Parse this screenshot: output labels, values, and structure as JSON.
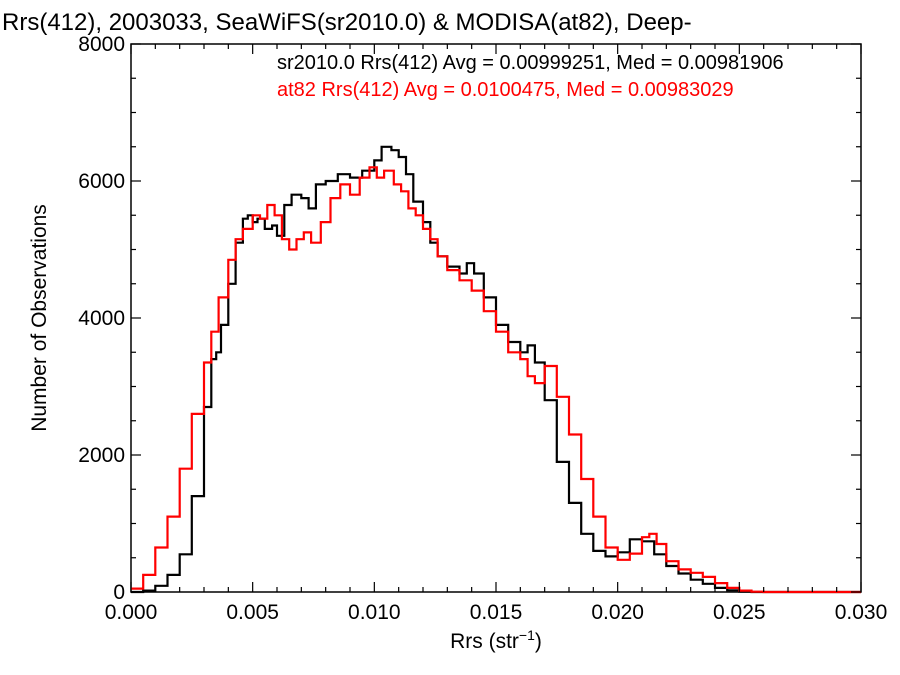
{
  "chart_data": {
    "type": "line",
    "step": true,
    "title": "Rrs(412), 2003033, SeaWiFS(sr2010.0) & MODISA(at82), Deep-",
    "xlabel": "Rrs (str",
    "xlabel_sup": "−1",
    "xlabel_end": ")",
    "ylabel": "Number of Observations",
    "xlim": [
      0.0,
      0.03
    ],
    "ylim": [
      0,
      8000
    ],
    "xticks": [
      "0.000",
      "0.005",
      "0.010",
      "0.015",
      "0.020",
      "0.025",
      "0.030"
    ],
    "yticks": [
      "0",
      "2000",
      "4000",
      "6000",
      "8000"
    ],
    "grid": false,
    "legend_position": "top-right",
    "series": [
      {
        "name": "sr2010.0 Rrs(412) Avg = 0.00999251, Med = 0.00981906",
        "color": "#000000",
        "points": [
          [
            0.0,
            0
          ],
          [
            0.0005,
            20
          ],
          [
            0.001,
            90
          ],
          [
            0.0015,
            250
          ],
          [
            0.002,
            550
          ],
          [
            0.0025,
            1400
          ],
          [
            0.003,
            2700
          ],
          [
            0.0033,
            3400
          ],
          [
            0.0035,
            3500
          ],
          [
            0.0037,
            3900
          ],
          [
            0.004,
            4500
          ],
          [
            0.0043,
            5100
          ],
          [
            0.0046,
            5450
          ],
          [
            0.0048,
            5500
          ],
          [
            0.005,
            5400
          ],
          [
            0.0052,
            5450
          ],
          [
            0.0055,
            5300
          ],
          [
            0.0058,
            5350
          ],
          [
            0.006,
            5200
          ],
          [
            0.0063,
            5650
          ],
          [
            0.0066,
            5800
          ],
          [
            0.007,
            5750
          ],
          [
            0.0073,
            5600
          ],
          [
            0.0076,
            5950
          ],
          [
            0.008,
            6000
          ],
          [
            0.0085,
            6100
          ],
          [
            0.009,
            6050
          ],
          [
            0.0095,
            6150
          ],
          [
            0.01,
            6300
          ],
          [
            0.0103,
            6500
          ],
          [
            0.0107,
            6450
          ],
          [
            0.011,
            6350
          ],
          [
            0.0113,
            6100
          ],
          [
            0.0116,
            5700
          ],
          [
            0.012,
            5400
          ],
          [
            0.0123,
            5100
          ],
          [
            0.0126,
            4900
          ],
          [
            0.013,
            4750
          ],
          [
            0.0135,
            4650
          ],
          [
            0.0138,
            4800
          ],
          [
            0.0141,
            4650
          ],
          [
            0.0145,
            4300
          ],
          [
            0.015,
            3900
          ],
          [
            0.0155,
            3650
          ],
          [
            0.016,
            3500
          ],
          [
            0.0163,
            3600
          ],
          [
            0.0166,
            3350
          ],
          [
            0.017,
            2800
          ],
          [
            0.0175,
            1900
          ],
          [
            0.018,
            1300
          ],
          [
            0.0185,
            850
          ],
          [
            0.019,
            600
          ],
          [
            0.0195,
            520
          ],
          [
            0.02,
            580
          ],
          [
            0.0205,
            770
          ],
          [
            0.021,
            740
          ],
          [
            0.0215,
            550
          ],
          [
            0.022,
            380
          ],
          [
            0.0225,
            270
          ],
          [
            0.023,
            180
          ],
          [
            0.0235,
            120
          ],
          [
            0.024,
            60
          ],
          [
            0.0245,
            25
          ],
          [
            0.025,
            5
          ],
          [
            0.0255,
            0
          ],
          [
            0.03,
            0
          ]
        ]
      },
      {
        "name": "at82 Rrs(412) Avg = 0.0100475, Med = 0.00983029",
        "color": "#ff0000",
        "points": [
          [
            0.0,
            50
          ],
          [
            0.0005,
            250
          ],
          [
            0.001,
            650
          ],
          [
            0.0015,
            1100
          ],
          [
            0.002,
            1800
          ],
          [
            0.0025,
            2600
          ],
          [
            0.003,
            3350
          ],
          [
            0.0033,
            3800
          ],
          [
            0.0036,
            4300
          ],
          [
            0.004,
            4850
          ],
          [
            0.0043,
            5150
          ],
          [
            0.0046,
            5300
          ],
          [
            0.005,
            5500
          ],
          [
            0.0053,
            5450
          ],
          [
            0.0056,
            5650
          ],
          [
            0.0059,
            5500
          ],
          [
            0.0062,
            5150
          ],
          [
            0.0065,
            5000
          ],
          [
            0.0068,
            5150
          ],
          [
            0.0071,
            5250
          ],
          [
            0.0074,
            5100
          ],
          [
            0.0078,
            5400
          ],
          [
            0.0082,
            5750
          ],
          [
            0.0086,
            5950
          ],
          [
            0.009,
            5800
          ],
          [
            0.0094,
            6050
          ],
          [
            0.0098,
            6200
          ],
          [
            0.0101,
            6050
          ],
          [
            0.0104,
            6150
          ],
          [
            0.0108,
            5950
          ],
          [
            0.0111,
            5850
          ],
          [
            0.0114,
            5600
          ],
          [
            0.0117,
            5500
          ],
          [
            0.012,
            5300
          ],
          [
            0.0123,
            5150
          ],
          [
            0.0126,
            4900
          ],
          [
            0.013,
            4700
          ],
          [
            0.0135,
            4550
          ],
          [
            0.014,
            4400
          ],
          [
            0.0145,
            4100
          ],
          [
            0.015,
            3800
          ],
          [
            0.0155,
            3500
          ],
          [
            0.016,
            3400
          ],
          [
            0.0163,
            3150
          ],
          [
            0.0166,
            3050
          ],
          [
            0.017,
            3300
          ],
          [
            0.0175,
            2850
          ],
          [
            0.018,
            2300
          ],
          [
            0.0185,
            1650
          ],
          [
            0.019,
            1100
          ],
          [
            0.0195,
            650
          ],
          [
            0.02,
            470
          ],
          [
            0.0205,
            560
          ],
          [
            0.021,
            800
          ],
          [
            0.0213,
            850
          ],
          [
            0.0216,
            700
          ],
          [
            0.022,
            450
          ],
          [
            0.0225,
            330
          ],
          [
            0.023,
            280
          ],
          [
            0.0235,
            220
          ],
          [
            0.024,
            130
          ],
          [
            0.0245,
            60
          ],
          [
            0.025,
            20
          ],
          [
            0.0255,
            5
          ],
          [
            0.026,
            0
          ],
          [
            0.03,
            0
          ]
        ]
      }
    ]
  }
}
